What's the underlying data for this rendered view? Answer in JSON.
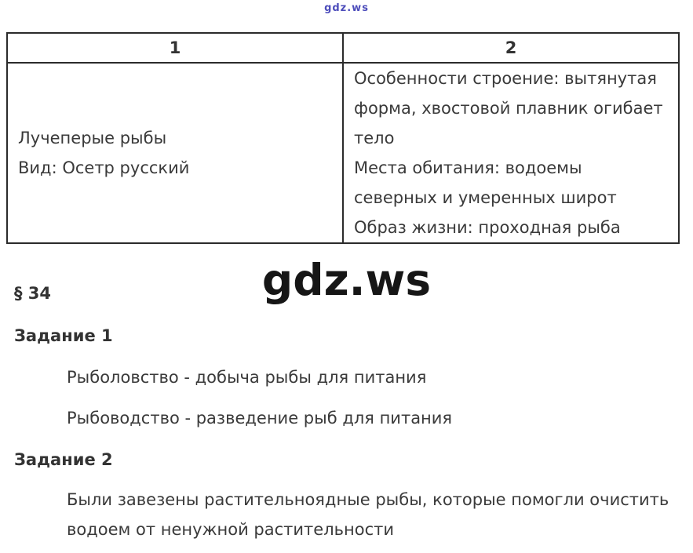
{
  "colors": {
    "accent_blue": "#4d4dbb",
    "body_text": "#3a3a3a",
    "heading_text": "#333333",
    "table_border": "#2b2b2b",
    "watermark_black": "#161616"
  },
  "watermarks": {
    "top_small": "gdz.ws",
    "center_large": "gdz.ws"
  },
  "table": {
    "headers": [
      "1",
      "2"
    ],
    "row": {
      "left_lines": [
        "Лучеперые рыбы",
        "Вид: Осетр русский"
      ],
      "right_items": [
        "Особенности строение: вытянутая форма, хвостовой плавник огибает тело",
        "Места обитания: водоемы северных и умеренных широт",
        "Образ жизни: проходная рыба"
      ]
    }
  },
  "content": {
    "paragraph_ref": "§ 34",
    "task1": {
      "label": "Задание 1",
      "lines": [
        "Рыболовство - добыча рыбы для питания",
        "Рыбоводство - разведение рыб для питания"
      ]
    },
    "task2": {
      "label": "Задание 2",
      "text": "Были завезены растительноядные рыбы, которые помогли очистить водоем от ненужной растительности"
    }
  }
}
